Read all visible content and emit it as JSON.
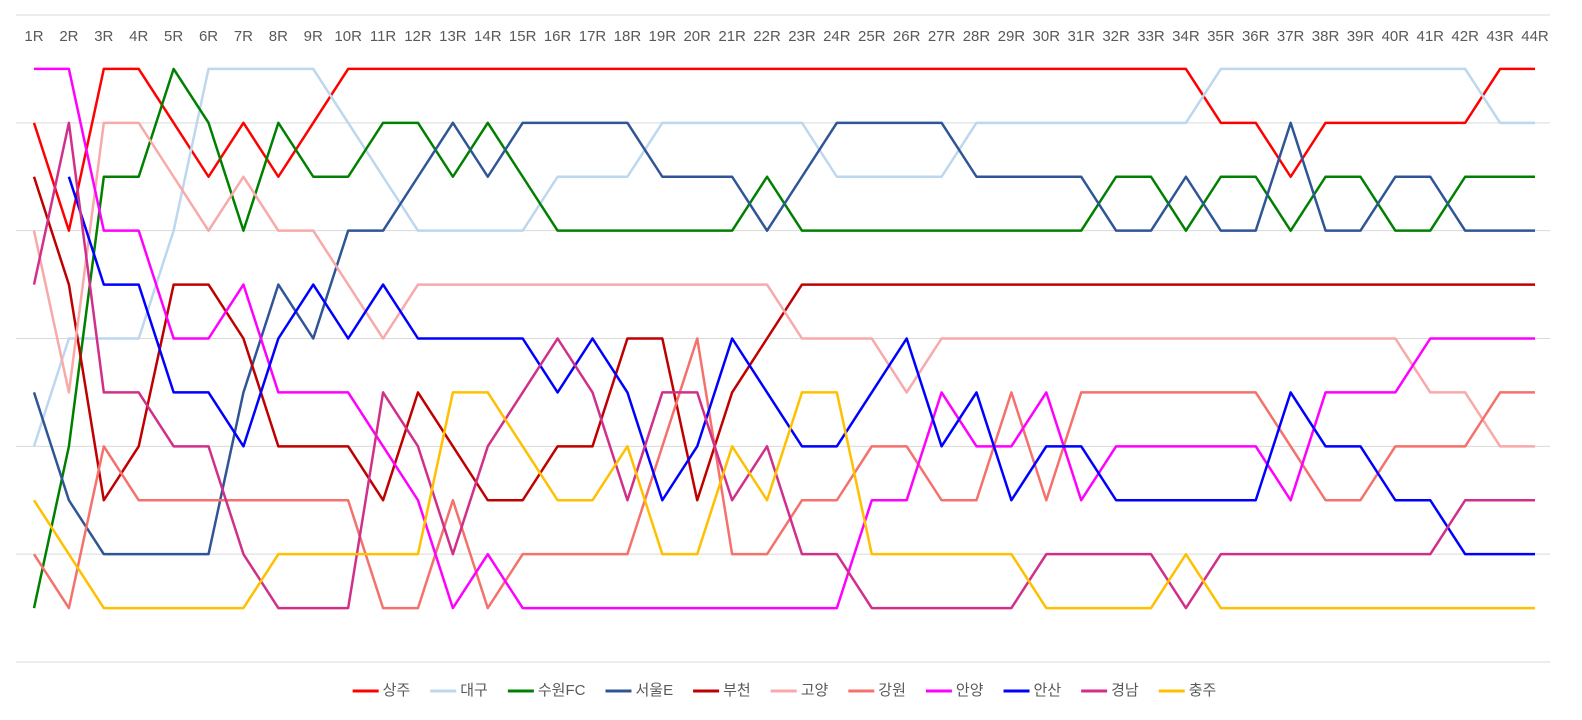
{
  "chart_data": {
    "type": "line",
    "categories": [
      "1R",
      "2R",
      "3R",
      "4R",
      "5R",
      "6R",
      "7R",
      "8R",
      "9R",
      "10R",
      "11R",
      "12R",
      "13R",
      "14R",
      "15R",
      "16R",
      "17R",
      "18R",
      "19R",
      "20R",
      "21R",
      "22R",
      "23R",
      "24R",
      "25R",
      "26R",
      "27R",
      "28R",
      "29R",
      "30R",
      "31R",
      "32R",
      "33R",
      "34R",
      "35R",
      "36R",
      "37R",
      "38R",
      "39R",
      "40R",
      "41R",
      "42R",
      "43R",
      "44R"
    ],
    "ylim": [
      12,
      0
    ],
    "yticks": [
      0,
      2,
      4,
      6,
      8,
      10,
      12
    ],
    "grid": true,
    "legend": "bottom",
    "series": [
      {
        "name": "상주",
        "color": "#ff0000",
        "values": [
          2,
          4,
          1,
          1,
          2,
          3,
          2,
          3,
          2,
          1,
          1,
          1,
          1,
          1,
          1,
          1,
          1,
          1,
          1,
          1,
          1,
          1,
          1,
          1,
          1,
          1,
          1,
          1,
          1,
          1,
          1,
          1,
          1,
          1,
          2,
          2,
          3,
          2,
          2,
          2,
          2,
          2,
          1,
          1
        ]
      },
      {
        "name": "대구",
        "color": "#bdd7ee",
        "values": [
          8,
          6,
          6,
          6,
          4,
          1,
          1,
          1,
          1,
          2,
          3,
          4,
          4,
          4,
          4,
          3,
          3,
          3,
          2,
          2,
          2,
          2,
          2,
          3,
          3,
          3,
          3,
          2,
          2,
          2,
          2,
          2,
          2,
          2,
          1,
          1,
          1,
          1,
          1,
          1,
          1,
          1,
          2,
          2
        ]
      },
      {
        "name": "수원FC",
        "color": "#008000",
        "values": [
          11,
          8,
          3,
          3,
          1,
          2,
          4,
          2,
          3,
          3,
          2,
          2,
          3,
          2,
          3,
          4,
          4,
          4,
          4,
          4,
          4,
          3,
          4,
          4,
          4,
          4,
          4,
          4,
          4,
          4,
          4,
          3,
          3,
          4,
          3,
          3,
          4,
          3,
          3,
          4,
          4,
          3,
          3,
          3
        ]
      },
      {
        "name": "서울E",
        "color": "#2f5597",
        "values": [
          7,
          9,
          10,
          10,
          10,
          10,
          7,
          5,
          6,
          4,
          4,
          3,
          2,
          3,
          2,
          2,
          2,
          2,
          3,
          3,
          3,
          4,
          3,
          2,
          2,
          2,
          2,
          3,
          3,
          3,
          3,
          4,
          4,
          3,
          4,
          4,
          2,
          4,
          4,
          3,
          3,
          4,
          4,
          4
        ]
      },
      {
        "name": "부천",
        "color": "#c00000",
        "values": [
          3,
          5,
          9,
          8,
          5,
          5,
          6,
          8,
          8,
          8,
          9,
          7,
          8,
          9,
          9,
          8,
          8,
          6,
          6,
          9,
          7,
          6,
          5,
          5,
          5,
          5,
          5,
          5,
          5,
          5,
          5,
          5,
          5,
          5,
          5,
          5,
          5,
          5,
          5,
          5,
          5,
          5,
          5,
          5
        ]
      },
      {
        "name": "고양",
        "color": "#f8a9a9",
        "values": [
          4,
          7,
          2,
          2,
          3,
          4,
          3,
          4,
          4,
          5,
          6,
          5,
          5,
          5,
          5,
          5,
          5,
          5,
          5,
          5,
          5,
          5,
          6,
          6,
          6,
          7,
          6,
          6,
          6,
          6,
          6,
          6,
          6,
          6,
          6,
          6,
          6,
          6,
          6,
          6,
          7,
          7,
          8,
          8
        ]
      },
      {
        "name": "강원",
        "color": "#f4716c",
        "values": [
          10,
          11,
          8,
          9,
          9,
          9,
          9,
          9,
          9,
          9,
          11,
          11,
          9,
          11,
          10,
          10,
          10,
          10,
          8,
          6,
          10,
          10,
          9,
          9,
          8,
          8,
          9,
          9,
          7,
          9,
          7,
          7,
          7,
          7,
          7,
          7,
          8,
          9,
          9,
          8,
          8,
          8,
          7,
          7
        ]
      },
      {
        "name": "안양",
        "color": "#ff00ff",
        "values": [
          1,
          1,
          4,
          4,
          6,
          6,
          5,
          7,
          7,
          7,
          8,
          9,
          11,
          10,
          11,
          11,
          11,
          11,
          11,
          11,
          11,
          11,
          11,
          11,
          9,
          9,
          7,
          8,
          8,
          7,
          9,
          8,
          8,
          8,
          8,
          8,
          9,
          7,
          7,
          7,
          6,
          6,
          6,
          6
        ]
      },
      {
        "name": "안산",
        "color": "#0000ff",
        "values": [
          null,
          3,
          5,
          5,
          7,
          7,
          8,
          6,
          5,
          6,
          5,
          6,
          6,
          6,
          6,
          7,
          6,
          7,
          9,
          8,
          6,
          7,
          8,
          8,
          7,
          6,
          8,
          7,
          9,
          8,
          8,
          9,
          9,
          9,
          9,
          9,
          7,
          8,
          8,
          9,
          9,
          10,
          10,
          10
        ]
      },
      {
        "name": "경남",
        "color": "#d0308a",
        "values": [
          5,
          2,
          7,
          7,
          8,
          8,
          10,
          11,
          11,
          11,
          7,
          8,
          10,
          8,
          7,
          6,
          7,
          9,
          7,
          7,
          9,
          8,
          10,
          10,
          11,
          11,
          11,
          11,
          11,
          10,
          10,
          10,
          10,
          11,
          10,
          10,
          10,
          10,
          10,
          10,
          10,
          9,
          9,
          9
        ]
      },
      {
        "name": "충주",
        "color": "#ffc000",
        "values": [
          9,
          10,
          11,
          11,
          11,
          11,
          11,
          10,
          10,
          10,
          10,
          10,
          7,
          7,
          8,
          9,
          9,
          8,
          10,
          10,
          8,
          9,
          7,
          7,
          10,
          10,
          10,
          10,
          10,
          11,
          11,
          11,
          11,
          10,
          11,
          11,
          11,
          11,
          11,
          11,
          11,
          11,
          11,
          11
        ]
      }
    ]
  }
}
